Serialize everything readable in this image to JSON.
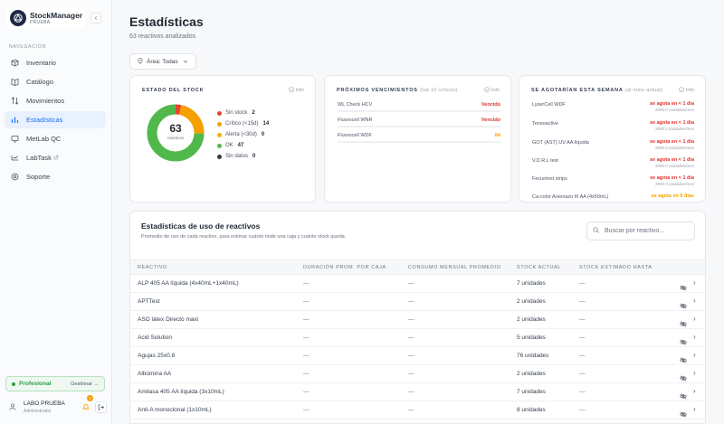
{
  "app": {
    "name": "StockManager",
    "env": "PRUEBA",
    "collapse_icon": "‹"
  },
  "sidebar": {
    "heading": "NAVEGACIÓN",
    "items": [
      {
        "label": "Inventario",
        "icon": "box-icon",
        "active": false
      },
      {
        "label": "Catálogo",
        "icon": "book-icon",
        "active": false
      },
      {
        "label": "Movimientos",
        "icon": "swap-icon",
        "active": false
      },
      {
        "label": "Estadísticas",
        "icon": "bar-chart-icon",
        "active": true
      },
      {
        "label": "MetLab QC",
        "icon": "monitor-icon",
        "active": false
      },
      {
        "label": "LabTask",
        "icon": "link-icon",
        "active": false
      },
      {
        "label": "Soporte",
        "icon": "help-icon",
        "active": false
      }
    ],
    "plan": {
      "label": "Profesional",
      "link": "Gestionar →"
    },
    "user": {
      "name": "LABO PRUEBA",
      "role": "Administrador",
      "notifications": "1"
    }
  },
  "page": {
    "title": "Estadísticas",
    "subtitle": "63 reactivos analizados",
    "area_filter": "Área: Todas"
  },
  "stock_card": {
    "title": "ESTADO DEL STOCK",
    "info": "Info",
    "total": "63",
    "total_label": "reactivos",
    "legend": [
      {
        "label": "Sin stock",
        "count": 2,
        "color": "#e8452c"
      },
      {
        "label": "Crítico (<15d)",
        "count": 14,
        "color": "#f59f00"
      },
      {
        "label": "Alerta (<30d)",
        "count": 0,
        "color": "#fab005"
      },
      {
        "label": "OK",
        "count": 47,
        "color": "#51b84b"
      },
      {
        "label": "Sin datos",
        "count": 0,
        "color": "#343a40"
      }
    ]
  },
  "venc_card": {
    "title": "PRÓXIMOS VENCIMIENTOS",
    "title_note": "(top 10 críticos)",
    "info": "Info",
    "items": [
      {
        "name": "WL Check HCV",
        "status": "Vencido",
        "color": "#e03131"
      },
      {
        "name": "Fluorocell WNR",
        "status": "Vencido",
        "color": "#e03131"
      },
      {
        "name": "Fluorocell WDF",
        "status": "0d",
        "color": "#f59f00"
      }
    ]
  },
  "agot_card": {
    "title": "SE AGOTARÍAN ESTA SEMANA",
    "title_note": "(al ritmo actual)",
    "info": "Info",
    "items": [
      {
        "name": "LyserCell WDF",
        "status": "se agota en < 1 día",
        "rate": "3000.0 unidades/mes",
        "color": "#e03131"
      },
      {
        "name": "Tensoactive",
        "status": "se agota en < 1 día",
        "rate": "3000.0 unidades/mes",
        "color": "#e03131"
      },
      {
        "name": "GOT (AST) UV AA líquida",
        "status": "se agota en < 1 día",
        "rate": "3000.0 unidades/mes",
        "color": "#e03131"
      },
      {
        "name": "V.D.R.L test",
        "status": "se agota en < 1 día",
        "rate": "3000.0 unidades/mes",
        "color": "#e03131"
      },
      {
        "name": "Fecuntest strips",
        "status": "se agota en < 1 día",
        "rate": "3000.0 unidades/mes",
        "color": "#e03131"
      },
      {
        "name": "Ca-color Arsenazo III AA (4x50mL)",
        "status": "se agota en 5 días",
        "rate": "",
        "color": "#f59f00"
      }
    ]
  },
  "usage": {
    "title": "Estadísticas de uso de reactivos",
    "subtitle": "Promedio de uso de cada reactivo, para estimar cuánto rinde una caja y cuánto stock queda.",
    "search_placeholder": "Buscar por reactivo...",
    "columns": [
      "REACTIVO",
      "DURACIÓN PROM. POR CAJA",
      "CONSUMO MENSUAL PROMEDIO",
      "STOCK ACTUAL",
      "STOCK ESTIMADO HASTA"
    ],
    "rows": [
      {
        "name": "ALP 405 AA líquida (4x40mL+1x40mL)",
        "duration": "—",
        "monthly": "—",
        "stock": "7 unidades",
        "until": "—"
      },
      {
        "name": "APTTest",
        "duration": "—",
        "monthly": "—",
        "stock": "2 unidades",
        "until": "—"
      },
      {
        "name": "ASO látex Directo maxi",
        "duration": "—",
        "monthly": "—",
        "stock": "2 unidades",
        "until": "—"
      },
      {
        "name": "Acid Solution",
        "duration": "—",
        "monthly": "—",
        "stock": "5 unidades",
        "until": "—"
      },
      {
        "name": "Agujas 25x0.8",
        "duration": "—",
        "monthly": "—",
        "stock": "76 unidades",
        "until": "—"
      },
      {
        "name": "Albúmina AA",
        "duration": "—",
        "monthly": "—",
        "stock": "2 unidades",
        "until": "—"
      },
      {
        "name": "Amilasa 405 AA líquida (3x10mL)",
        "duration": "—",
        "monthly": "—",
        "stock": "7 unidades",
        "until": "—"
      },
      {
        "name": "Anti-A monoclonal (1x10mL)",
        "duration": "—",
        "monthly": "—",
        "stock": "8 unidades",
        "until": "—"
      }
    ]
  }
}
